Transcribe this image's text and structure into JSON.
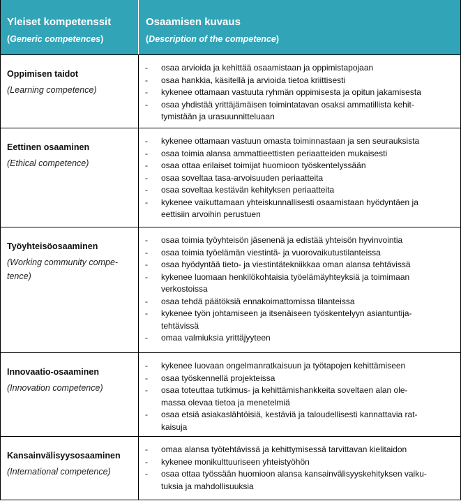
{
  "header": {
    "col1_title": "Yleiset kompetenssit",
    "col1_sub": "Generic competences",
    "col2_title": "Osaamisen kuvaus",
    "col2_sub": "Description of the competence",
    "color": "#31a4b8"
  },
  "rows": [
    {
      "title": "Oppimisen taidot",
      "sub": "Learning competence",
      "items": [
        "osaa arvioida ja kehittää osaamistaan ja oppimistapojaan",
        "osaa hankkia, käsitellä ja arvioida tietoa kriittisesti",
        "kykenee ottamaan vastuuta ryhmän oppimisesta ja opitun jakamisesta",
        "osaa yhdistää yrittäjämäisen toimintatavan osaksi ammatillista kehit-\ntymistään ja urasuunnitteluaan"
      ]
    },
    {
      "title": "Eettinen osaaminen",
      "sub": "Ethical competence",
      "items": [
        "kykenee ottamaan vastuun omasta toiminnastaan ja sen seurauksista",
        "osaa toimia alansa ammattieettisten periaatteiden mukaisesti",
        "osaa ottaa erilaiset toimijat huomioon työskentelyssään",
        "osaa soveltaa tasa-arvoisuuden periaatteita",
        "osaa soveltaa kestävän kehityksen periaatteita",
        "kykenee vaikuttamaan yhteiskunnallisesti osaamistaan hyödyntäen ja\neettisiin arvoihin perustuen"
      ]
    },
    {
      "title": "Työyhteisöosaaminen",
      "sub": "Working community compe-\ntence",
      "items": [
        "osaa toimia työyhteisön jäsenenä ja edistää yhteisön hyvinvointia",
        "osaa toimia työelämän viestintä- ja vuorovaikutustilanteissa",
        "osaa hyödyntää tieto- ja viestintätekniikkaa oman alansa tehtävissä",
        "kykenee luomaan henkilökohtaisia työelämäyhteyksiä ja toimimaan\nverkostoissa",
        "osaa tehdä päätöksiä ennakoimattomissa tilanteissa",
        "kykenee työn johtamiseen ja itsenäiseen työskentelyyn asiantuntija-\ntehtävissä",
        "omaa valmiuksia yrittäjyyteen"
      ]
    },
    {
      "title": "Innovaatio-osaaminen",
      "sub": "Innovation competence",
      "items": [
        "kykenee luovaan ongelmanratkaisuun ja työtapojen kehittämiseen",
        "osaa työskennellä projekteissa",
        "osaa toteuttaa tutkimus- ja kehittämishankkeita soveltaen alan ole-\nmassa olevaa tietoa ja menetelmiä",
        "osaa etsiä asiakaslähtöisiä, kestäviä ja taloudellisesti kannattavia rat-\nkaisuja"
      ]
    },
    {
      "title": "Kansainvälisyysosaaminen",
      "sub": "International competence",
      "items": [
        "omaa alansa työtehtävissä ja kehittymisessä tarvittavan kielitaidon",
        "kykenee monikulttuuriseen yhteistyöhön",
        "osaa ottaa työssään huomioon alansa kansainvälisyyskehityksen vaiku-\ntuksia ja mahdollisuuksia"
      ]
    }
  ]
}
